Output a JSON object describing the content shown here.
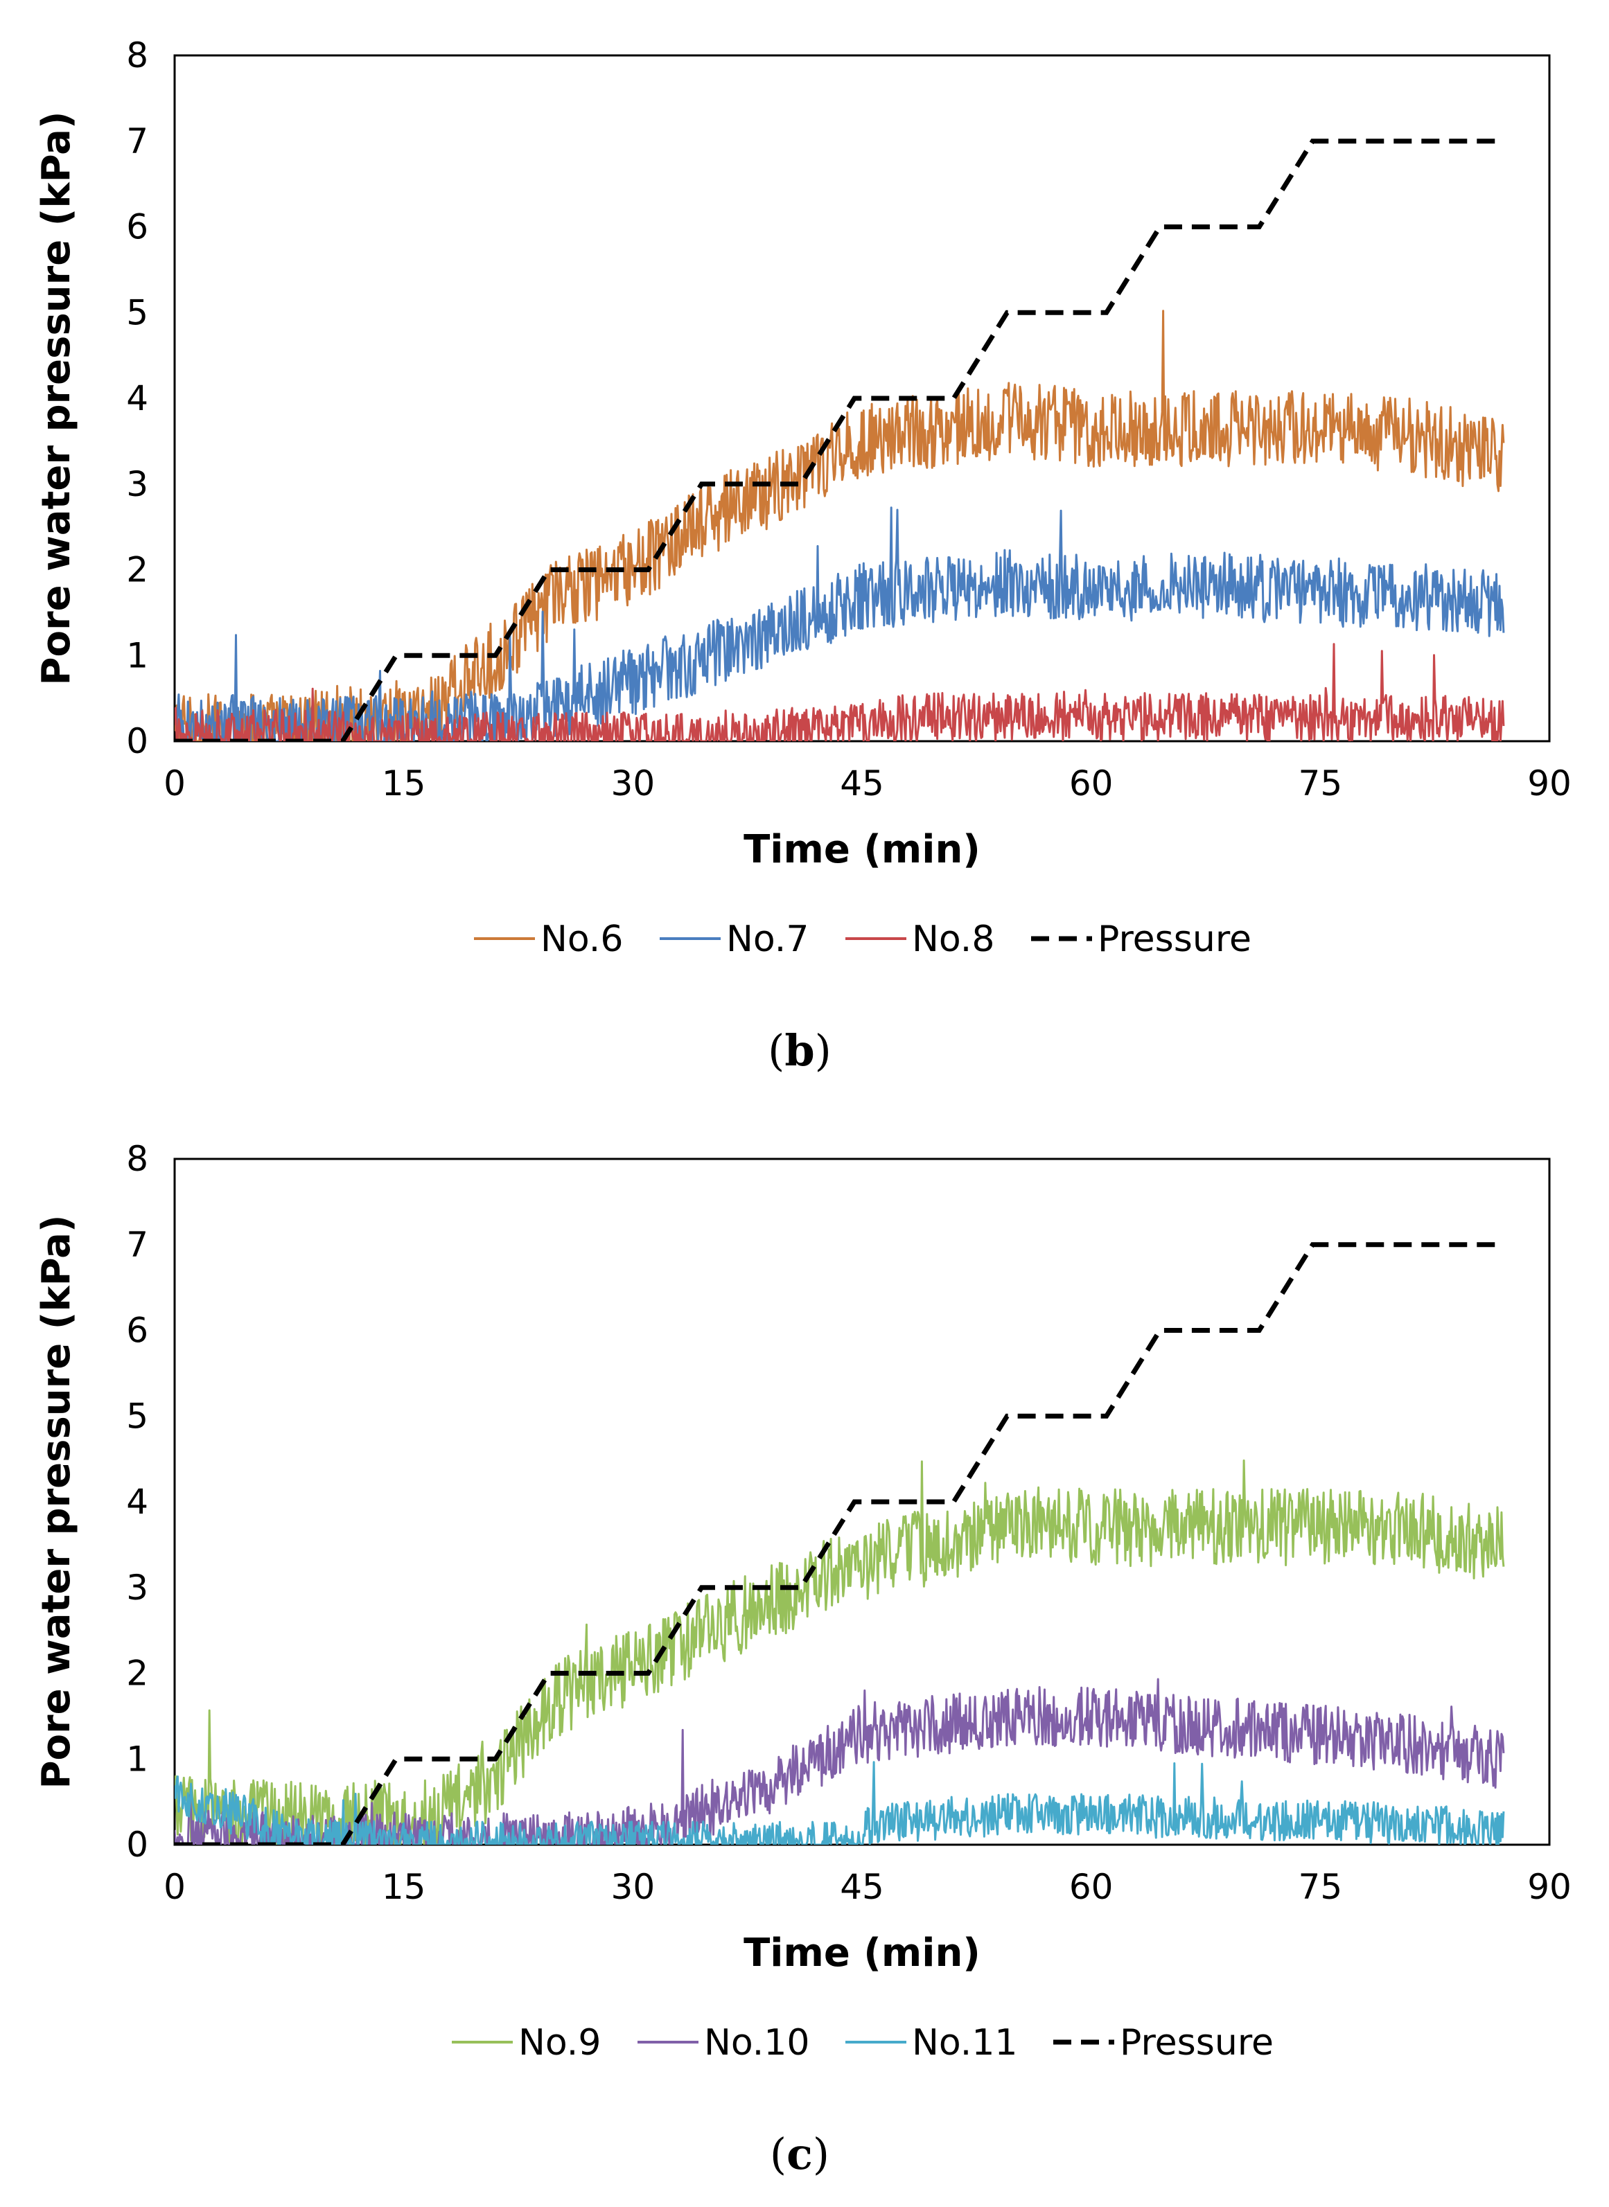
{
  "chart_data": [
    {
      "type": "line",
      "panel_label": "(b)",
      "panel_letter": "b",
      "xlabel": "Time (min)",
      "ylabel": "Pore water pressure (kPa)",
      "xlim": [
        0,
        90
      ],
      "ylim": [
        0,
        8
      ],
      "xticks": [
        0,
        15,
        30,
        45,
        60,
        75,
        90
      ],
      "yticks": [
        0,
        1,
        2,
        3,
        4,
        5,
        6,
        7,
        8
      ],
      "grid": false,
      "legend_position": "bottom",
      "series": [
        {
          "name": "No.6",
          "color": "#cc7a38",
          "style": "solid",
          "noise": 0.45,
          "x": [
            0,
            8,
            16,
            20,
            25,
            30,
            35,
            40,
            45,
            50,
            55,
            60,
            70,
            80,
            87
          ],
          "y": [
            0.1,
            0.15,
            0.3,
            0.8,
            1.7,
            2.0,
            2.6,
            3.0,
            3.5,
            3.65,
            3.75,
            3.65,
            3.65,
            3.6,
            3.3
          ]
        },
        {
          "name": "No.7",
          "color": "#4a7ebf",
          "style": "solid",
          "noise": 0.4,
          "x": [
            0,
            10,
            20,
            25,
            30,
            35,
            40,
            45,
            50,
            55,
            60,
            70,
            80,
            87
          ],
          "y": [
            0.15,
            0.15,
            0.2,
            0.4,
            0.7,
            1.0,
            1.3,
            1.7,
            1.75,
            1.85,
            1.8,
            1.8,
            1.7,
            1.6
          ]
        },
        {
          "name": "No.8",
          "color": "#c8474a",
          "style": "solid",
          "noise": 0.3,
          "x": [
            0,
            10,
            25,
            35,
            42,
            48,
            55,
            60,
            70,
            80,
            87
          ],
          "y": [
            0.1,
            0.05,
            0.03,
            0.05,
            0.1,
            0.25,
            0.3,
            0.3,
            0.25,
            0.25,
            0.2
          ]
        },
        {
          "name": "Pressure",
          "color": "#000000",
          "style": "dashed",
          "noise": 0,
          "x": [
            0,
            11,
            14.5,
            21,
            24.5,
            31,
            34.5,
            41,
            44.5,
            51,
            54.5,
            61,
            64.5,
            71,
            74.5,
            87
          ],
          "y": [
            0,
            0,
            1,
            1,
            2,
            2,
            3,
            3,
            4,
            4,
            5,
            5,
            6,
            6,
            7,
            7
          ]
        }
      ]
    },
    {
      "type": "line",
      "panel_label": "(c)",
      "panel_letter": "c",
      "xlabel": "Time (min)",
      "ylabel": "Pore water pressure (kPa)",
      "xlim": [
        0,
        90
      ],
      "ylim": [
        0,
        8
      ],
      "xticks": [
        0,
        15,
        30,
        45,
        60,
        75,
        90
      ],
      "yticks": [
        0,
        1,
        2,
        3,
        4,
        5,
        6,
        7,
        8
      ],
      "grid": false,
      "legend_position": "bottom",
      "series": [
        {
          "name": "No.9",
          "color": "#97c05a",
          "style": "solid",
          "noise": 0.45,
          "x": [
            0,
            8,
            16,
            20,
            25,
            30,
            35,
            40,
            45,
            50,
            55,
            60,
            70,
            80,
            87
          ],
          "y": [
            0.4,
            0.3,
            0.3,
            0.6,
            1.7,
            2.1,
            2.5,
            2.9,
            3.3,
            3.5,
            3.75,
            3.7,
            3.7,
            3.7,
            3.5
          ]
        },
        {
          "name": "No.10",
          "color": "#8060a8",
          "style": "solid",
          "noise": 0.35,
          "x": [
            0,
            10,
            25,
            30,
            35,
            40,
            45,
            50,
            55,
            60,
            70,
            80,
            87
          ],
          "y": [
            0.05,
            0.03,
            0.02,
            0.1,
            0.4,
            0.8,
            1.3,
            1.4,
            1.5,
            1.5,
            1.35,
            1.2,
            1.0
          ]
        },
        {
          "name": "No.11",
          "color": "#46aacb",
          "style": "solid",
          "noise": 0.25,
          "x": [
            0,
            5,
            8,
            15,
            30,
            44,
            46,
            50,
            55,
            60,
            70,
            80,
            87
          ],
          "y": [
            0.6,
            0.3,
            0.05,
            0.02,
            0.02,
            0.02,
            0.25,
            0.3,
            0.35,
            0.35,
            0.3,
            0.25,
            0.15
          ]
        },
        {
          "name": "Pressure",
          "color": "#000000",
          "style": "dashed",
          "noise": 0,
          "x": [
            0,
            11,
            14.5,
            21,
            24.5,
            31,
            34.5,
            41,
            44.5,
            51,
            54.5,
            61,
            64.5,
            71,
            74.5,
            87
          ],
          "y": [
            0,
            0,
            1,
            1,
            2,
            2,
            3,
            3,
            4,
            4,
            5,
            5,
            6,
            6,
            7,
            7
          ]
        }
      ]
    }
  ]
}
